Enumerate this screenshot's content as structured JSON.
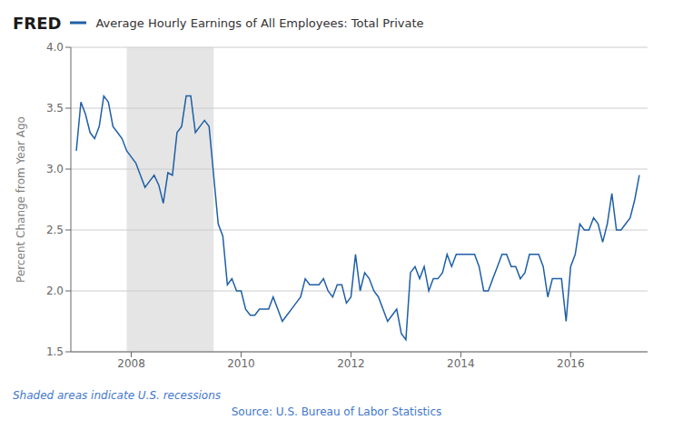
{
  "chart_data": {
    "type": "line",
    "title": "Average Hourly Earnings of All Employees: Total Private",
    "ylabel": "Percent Change from Year Ago",
    "annotations": [
      "FRED",
      "Shaded areas indicate U.S. recessions",
      "Source: U.S. Bureau of Labor Statistics"
    ],
    "color": "#1f5fa6",
    "grid": true,
    "shaded_ranges": [
      [
        2007.917,
        2009.5
      ]
    ],
    "xlim": [
      2006.9,
      2017.4
    ],
    "xticks": [
      2008,
      2010,
      2012,
      2014,
      2016
    ],
    "ylim": [
      1.5,
      4.0
    ],
    "yticks": [
      1.5,
      {
        "value": 2.0,
        "label": "2.0"
      },
      2.5,
      {
        "value": 3.0,
        "label": "3.0"
      },
      3.5,
      {
        "value": 4.0,
        "label": "4.0"
      }
    ],
    "x": [
      2007.0,
      2007.083,
      2007.167,
      2007.25,
      2007.333,
      2007.417,
      2007.5,
      2007.583,
      2007.667,
      2007.75,
      2007.833,
      2007.917,
      2008.0,
      2008.083,
      2008.167,
      2008.25,
      2008.333,
      2008.417,
      2008.5,
      2008.583,
      2008.667,
      2008.75,
      2008.833,
      2008.917,
      2009.0,
      2009.083,
      2009.167,
      2009.25,
      2009.333,
      2009.417,
      2009.5,
      2009.583,
      2009.667,
      2009.75,
      2009.833,
      2009.917,
      2010.0,
      2010.083,
      2010.167,
      2010.25,
      2010.333,
      2010.417,
      2010.5,
      2010.583,
      2010.667,
      2010.75,
      2010.833,
      2010.917,
      2011.0,
      2011.083,
      2011.167,
      2011.25,
      2011.333,
      2011.417,
      2011.5,
      2011.583,
      2011.667,
      2011.75,
      2011.833,
      2011.917,
      2012.0,
      2012.083,
      2012.167,
      2012.25,
      2012.333,
      2012.417,
      2012.5,
      2012.583,
      2012.667,
      2012.75,
      2012.833,
      2012.917,
      2013.0,
      2013.083,
      2013.167,
      2013.25,
      2013.333,
      2013.417,
      2013.5,
      2013.583,
      2013.667,
      2013.75,
      2013.833,
      2013.917,
      2014.0,
      2014.083,
      2014.167,
      2014.25,
      2014.333,
      2014.417,
      2014.5,
      2014.583,
      2014.667,
      2014.75,
      2014.833,
      2014.917,
      2015.0,
      2015.083,
      2015.167,
      2015.25,
      2015.333,
      2015.417,
      2015.5,
      2015.583,
      2015.667,
      2015.75,
      2015.833,
      2015.917,
      2016.0,
      2016.083,
      2016.167,
      2016.25,
      2016.333,
      2016.417,
      2016.5,
      2016.583,
      2016.667,
      2016.75,
      2016.833,
      2016.917,
      2017.0,
      2017.083,
      2017.167,
      2017.25
    ],
    "values": [
      3.15,
      3.55,
      3.45,
      3.3,
      3.25,
      3.35,
      3.6,
      3.55,
      3.35,
      3.3,
      3.25,
      3.15,
      3.1,
      3.05,
      2.95,
      2.85,
      2.9,
      2.95,
      2.87,
      2.72,
      2.97,
      2.95,
      3.3,
      3.35,
      3.6,
      3.6,
      3.3,
      3.35,
      3.4,
      3.35,
      2.95,
      2.55,
      2.45,
      2.05,
      2.1,
      2.0,
      2.0,
      1.85,
      1.8,
      1.8,
      1.85,
      1.85,
      1.85,
      1.95,
      1.85,
      1.75,
      1.8,
      1.85,
      1.9,
      1.95,
      2.1,
      2.05,
      2.05,
      2.05,
      2.1,
      2.0,
      1.95,
      2.05,
      2.05,
      1.9,
      1.95,
      2.3,
      2.0,
      2.15,
      2.1,
      2.0,
      1.95,
      1.85,
      1.75,
      1.8,
      1.85,
      1.65,
      1.6,
      2.15,
      2.2,
      2.1,
      2.2,
      2.0,
      2.1,
      2.1,
      2.15,
      2.3,
      2.2,
      2.3,
      2.3,
      2.3,
      2.3,
      2.3,
      2.2,
      2.0,
      2.0,
      2.1,
      2.2,
      2.3,
      2.3,
      2.2,
      2.2,
      2.1,
      2.15,
      2.3,
      2.3,
      2.3,
      2.2,
      1.95,
      2.1,
      2.1,
      2.1,
      1.75,
      2.2,
      2.3,
      2.55,
      2.5,
      2.5,
      2.6,
      2.55,
      2.4,
      2.55,
      2.8,
      2.5,
      2.5,
      2.55,
      2.6,
      2.75,
      2.95
    ]
  }
}
